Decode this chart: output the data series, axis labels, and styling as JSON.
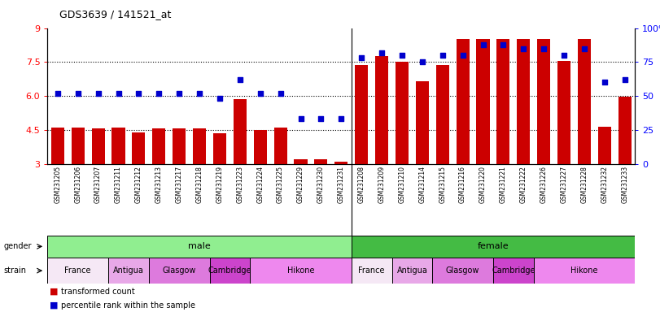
{
  "title": "GDS3639 / 141521_at",
  "samples": [
    "GSM231205",
    "GSM231206",
    "GSM231207",
    "GSM231211",
    "GSM231212",
    "GSM231213",
    "GSM231217",
    "GSM231218",
    "GSM231219",
    "GSM231223",
    "GSM231224",
    "GSM231225",
    "GSM231229",
    "GSM231230",
    "GSM231231",
    "GSM231208",
    "GSM231209",
    "GSM231210",
    "GSM231214",
    "GSM231215",
    "GSM231216",
    "GSM231220",
    "GSM231221",
    "GSM231222",
    "GSM231226",
    "GSM231227",
    "GSM231228",
    "GSM231232",
    "GSM231233"
  ],
  "bar_values": [
    4.6,
    4.6,
    4.55,
    4.6,
    4.4,
    4.55,
    4.55,
    4.55,
    4.35,
    5.85,
    4.5,
    4.6,
    3.2,
    3.2,
    3.1,
    7.35,
    7.75,
    7.5,
    6.65,
    7.35,
    8.5,
    8.5,
    8.5,
    8.5,
    8.5,
    7.55,
    8.5,
    4.65,
    5.95
  ],
  "dot_values": [
    52,
    52,
    52,
    52,
    52,
    52,
    52,
    52,
    48,
    62,
    52,
    52,
    33,
    33,
    33,
    78,
    82,
    80,
    75,
    80,
    80,
    88,
    88,
    85,
    85,
    80,
    85,
    60,
    62
  ],
  "ymin": 3,
  "ymax": 9,
  "yticks_left": [
    3,
    4.5,
    6.0,
    7.5,
    9
  ],
  "pmin": 0,
  "pmax": 100,
  "pticks": [
    0,
    25,
    50,
    75,
    100
  ],
  "ptick_labels": [
    "0",
    "25",
    "50",
    "75",
    "100%"
  ],
  "hlines": [
    4.5,
    6.0,
    7.5
  ],
  "bar_color": "#cc0000",
  "dot_color": "#0000cc",
  "male_color": "#90ee90",
  "female_color": "#44bb44",
  "male_count": 15,
  "female_count": 14,
  "strain_groups": [
    {
      "start": 0,
      "end": 3,
      "label": "France",
      "color": "#f5e8f5"
    },
    {
      "start": 3,
      "end": 5,
      "label": "Antigua",
      "color": "#e8a8e8"
    },
    {
      "start": 5,
      "end": 8,
      "label": "Glasgow",
      "color": "#dd7add"
    },
    {
      "start": 8,
      "end": 10,
      "label": "Cambridge",
      "color": "#cc44cc"
    },
    {
      "start": 10,
      "end": 15,
      "label": "Hikone",
      "color": "#ee88ee"
    },
    {
      "start": 15,
      "end": 17,
      "label": "France",
      "color": "#f5e8f5"
    },
    {
      "start": 17,
      "end": 19,
      "label": "Antigua",
      "color": "#e8a8e8"
    },
    {
      "start": 19,
      "end": 22,
      "label": "Glasgow",
      "color": "#dd7add"
    },
    {
      "start": 22,
      "end": 24,
      "label": "Cambridge",
      "color": "#cc44cc"
    },
    {
      "start": 24,
      "end": 29,
      "label": "Hikone",
      "color": "#ee88ee"
    }
  ],
  "legend": [
    {
      "label": "transformed count",
      "color": "#cc0000"
    },
    {
      "label": "percentile rank within the sample",
      "color": "#0000cc"
    }
  ]
}
